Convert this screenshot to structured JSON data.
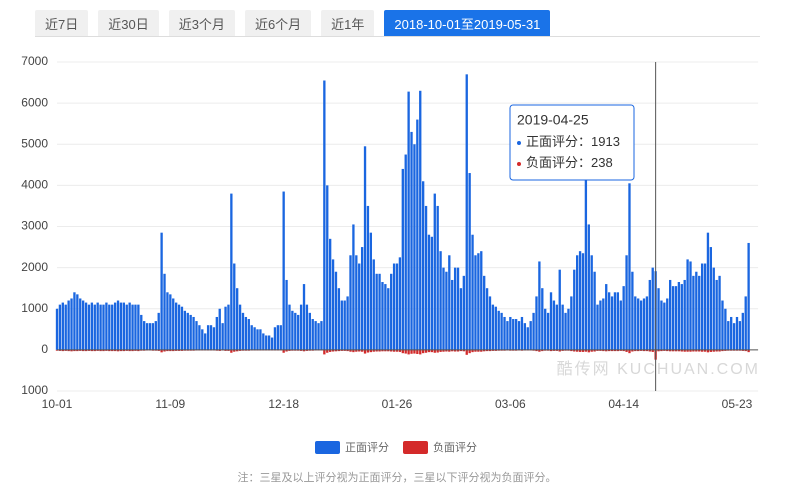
{
  "tabs": {
    "items": [
      "近7日",
      "近30日",
      "近3个月",
      "近6个月",
      "近1年",
      "2018-10-01至2019-05-31"
    ],
    "active": 5
  },
  "footnote": "注：三星及以上评分视为正面评分，三星以下评分视为负面评分。",
  "chart_data": {
    "type": "bar",
    "watermark": "酷传网 KUCHUAN.COM",
    "categories": [
      "10-01",
      null,
      null,
      null,
      null,
      null,
      null,
      null,
      null,
      null,
      null,
      null,
      null,
      null,
      null,
      null,
      null,
      null,
      null,
      null,
      null,
      null,
      null,
      null,
      null,
      null,
      null,
      null,
      null,
      null,
      null,
      null,
      null,
      null,
      null,
      null,
      null,
      null,
      null,
      "11-09",
      null,
      null,
      null,
      null,
      null,
      null,
      null,
      null,
      null,
      null,
      null,
      null,
      null,
      null,
      null,
      null,
      null,
      null,
      null,
      null,
      null,
      null,
      null,
      null,
      null,
      null,
      null,
      null,
      null,
      null,
      null,
      null,
      null,
      null,
      null,
      null,
      null,
      null,
      "12-18",
      null,
      null,
      null,
      null,
      null,
      null,
      null,
      null,
      null,
      null,
      null,
      null,
      null,
      null,
      null,
      null,
      null,
      null,
      null,
      null,
      null,
      null,
      null,
      null,
      null,
      null,
      null,
      null,
      null,
      null,
      null,
      null,
      null,
      null,
      null,
      null,
      null,
      null,
      "01-26",
      null,
      null,
      null,
      null,
      null,
      null,
      null,
      null,
      null,
      null,
      null,
      null,
      null,
      null,
      null,
      null,
      null,
      null,
      null,
      null,
      null,
      null,
      null,
      null,
      null,
      null,
      null,
      null,
      null,
      null,
      null,
      null,
      null,
      null,
      null,
      null,
      null,
      null,
      "03-06",
      null,
      null,
      null,
      null,
      null,
      null,
      null,
      null,
      null,
      null,
      null,
      null,
      null,
      null,
      null,
      null,
      null,
      null,
      null,
      null,
      null,
      null,
      null,
      null,
      null,
      null,
      null,
      null,
      null,
      null,
      null,
      null,
      null,
      null,
      null,
      null,
      null,
      null,
      "04-14",
      null,
      null,
      null,
      null,
      null,
      null,
      null,
      null,
      null,
      null,
      null,
      null,
      null,
      null,
      null,
      null,
      null,
      null,
      null,
      null,
      null,
      null,
      null,
      null,
      null,
      null,
      null,
      null,
      null,
      null,
      null,
      null,
      null,
      null,
      null,
      null,
      null,
      null,
      "05-23",
      null,
      null,
      null,
      null
    ],
    "series": [
      {
        "name": "正面评分",
        "color": "#1a66e0",
        "values": [
          1000,
          1100,
          1150,
          1100,
          1200,
          1250,
          1400,
          1350,
          1250,
          1200,
          1150,
          1100,
          1150,
          1100,
          1150,
          1100,
          1100,
          1150,
          1100,
          1100,
          1150,
          1200,
          1150,
          1150,
          1100,
          1150,
          1100,
          1100,
          1100,
          850,
          700,
          650,
          650,
          650,
          700,
          900,
          2850,
          1850,
          1400,
          1350,
          1250,
          1150,
          1100,
          1050,
          950,
          900,
          850,
          800,
          700,
          600,
          500,
          400,
          600,
          600,
          550,
          800,
          1000,
          650,
          1050,
          1100,
          3800,
          2100,
          1500,
          1100,
          900,
          800,
          750,
          600,
          550,
          500,
          500,
          400,
          350,
          350,
          300,
          550,
          600,
          600,
          3850,
          1700,
          1100,
          950,
          900,
          850,
          1100,
          1600,
          1100,
          900,
          750,
          700,
          650,
          700,
          6550,
          4000,
          2700,
          2200,
          1900,
          1500,
          1200,
          1200,
          1300,
          2300,
          3050,
          2300,
          2100,
          2500,
          4950,
          3500,
          2850,
          2200,
          1850,
          1850,
          1650,
          1600,
          1500,
          1850,
          2100,
          2100,
          2250,
          4400,
          4750,
          6280,
          5300,
          5000,
          5600,
          6300,
          4100,
          3500,
          2800,
          2750,
          3800,
          3500,
          2400,
          2000,
          1900,
          2300,
          1700,
          2000,
          2000,
          1500,
          1800,
          6700,
          4300,
          2800,
          2300,
          2350,
          2400,
          1800,
          1500,
          1300,
          1100,
          1050,
          950,
          900,
          800,
          700,
          800,
          750,
          750,
          700,
          800,
          650,
          550,
          700,
          900,
          1300,
          2150,
          1500,
          1000,
          900,
          1400,
          1200,
          1100,
          1950,
          1100,
          900,
          1000,
          1300,
          1950,
          2300,
          2400,
          2350,
          4300,
          3050,
          2300,
          1900,
          1100,
          1200,
          1250,
          1600,
          1400,
          1300,
          1400,
          1400,
          1200,
          1550,
          2300,
          4050,
          1900,
          1300,
          1250,
          1200,
          1250,
          1300,
          1700,
          2000,
          1913,
          1500,
          1200,
          1150,
          1250,
          1700,
          1550,
          1550,
          1650,
          1600,
          1700,
          2200,
          2150,
          1800,
          1900,
          1800,
          2100,
          2100,
          2850,
          2500,
          2000,
          1700,
          1800,
          1200,
          1000,
          700,
          800,
          650,
          800,
          700,
          900,
          1300,
          2600
        ]
      },
      {
        "name": "负面评分",
        "color": "#d42a2a",
        "values": [
          -20,
          -25,
          -30,
          -25,
          -30,
          -35,
          -30,
          -30,
          -25,
          -30,
          -30,
          -25,
          -30,
          -30,
          -25,
          -30,
          -30,
          -25,
          -30,
          -30,
          -30,
          -35,
          -30,
          -30,
          -25,
          -30,
          -30,
          -25,
          -30,
          -20,
          -20,
          -15,
          -15,
          -20,
          -20,
          -25,
          -60,
          -40,
          -30,
          -30,
          -30,
          -25,
          -25,
          -25,
          -20,
          -20,
          -20,
          -20,
          -15,
          -15,
          -15,
          -10,
          -15,
          -15,
          -15,
          -20,
          -25,
          -15,
          -25,
          -25,
          -70,
          -45,
          -35,
          -25,
          -20,
          -20,
          -20,
          -15,
          -15,
          -15,
          -15,
          -10,
          -10,
          -10,
          -10,
          -15,
          -15,
          -15,
          -70,
          -40,
          -25,
          -20,
          -20,
          -20,
          -25,
          -35,
          -25,
          -20,
          -20,
          -15,
          -15,
          -15,
          -110,
          -70,
          -50,
          -40,
          -35,
          -30,
          -25,
          -25,
          -30,
          -45,
          -55,
          -45,
          -40,
          -45,
          -90,
          -65,
          -55,
          -45,
          -40,
          -40,
          -35,
          -35,
          -35,
          -40,
          -45,
          -45,
          -50,
          -80,
          -90,
          -110,
          -95,
          -90,
          -100,
          -110,
          -80,
          -70,
          -55,
          -55,
          -70,
          -65,
          -50,
          -45,
          -40,
          -45,
          -35,
          -40,
          -40,
          -30,
          -35,
          -120,
          -80,
          -55,
          -45,
          -45,
          -45,
          -35,
          -30,
          -30,
          -25,
          -25,
          -20,
          -20,
          -20,
          -15,
          -20,
          -20,
          -20,
          -15,
          -20,
          -15,
          -15,
          -15,
          -20,
          -30,
          -45,
          -30,
          -20,
          -20,
          -30,
          -25,
          -25,
          -40,
          -25,
          -20,
          -20,
          -30,
          -40,
          -45,
          -50,
          -50,
          -45,
          -60,
          -45,
          -40,
          -25,
          -25,
          -30,
          -35,
          -30,
          -30,
          -30,
          -30,
          -25,
          -30,
          -50,
          -80,
          -40,
          -30,
          -30,
          -25,
          -30,
          -30,
          -40,
          -50,
          -238,
          -35,
          -30,
          -25,
          -30,
          -35,
          -35,
          -35,
          -35,
          -40,
          -45,
          -45,
          -45,
          -40,
          -40,
          -40,
          -45,
          -45,
          -60,
          -50,
          -45,
          -40,
          -40,
          -30,
          -25,
          -20,
          -20,
          -20,
          -20,
          -20,
          -25,
          -30,
          -55
        ]
      }
    ],
    "ylim": [
      -1000,
      7000
    ],
    "yticks": [
      {
        "value": -1000,
        "label": "1000"
      },
      0,
      1000,
      2000,
      3000,
      4000,
      5000,
      6000,
      7000
    ],
    "grid": true,
    "legend": "bottom",
    "tooltip": {
      "index": 206,
      "date": "2019-04-25",
      "separator": "：",
      "items": [
        {
          "name": "正面评分",
          "value": 1913
        },
        {
          "name": "负面评分",
          "value": 238
        }
      ]
    }
  }
}
